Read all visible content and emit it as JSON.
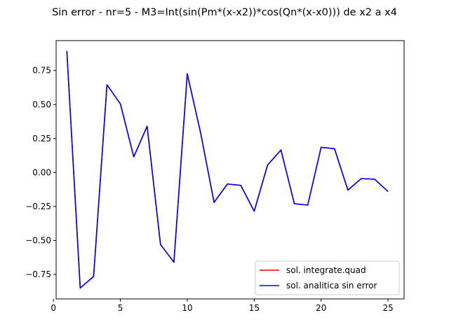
{
  "chart_data": {
    "type": "line",
    "title": "Sin error  - nr=5 - M3=Int(sin(Pm*(x-x2))*cos(Qn*(x-x0))) de x2 a x4",
    "xlabel": "",
    "ylabel": "",
    "xlim": [
      0.2,
      26.2
    ],
    "ylim": [
      -0.93,
      0.97
    ],
    "xticks": [
      0,
      5,
      10,
      15,
      20,
      25
    ],
    "yticks": [
      -0.75,
      -0.5,
      -0.25,
      0.0,
      0.25,
      0.5,
      0.75
    ],
    "xtick_labels": [
      "0",
      "5",
      "10",
      "15",
      "20",
      "25"
    ],
    "ytick_labels": [
      "−0.75",
      "−0.50",
      "−0.25",
      "0.00",
      "0.25",
      "0.50",
      "0.75"
    ],
    "grid": false,
    "legend_position": "lower-right",
    "x": [
      1,
      2,
      3,
      4,
      5,
      6,
      7,
      8,
      9,
      10,
      11,
      12,
      13,
      14,
      15,
      16,
      17,
      18,
      19,
      20,
      21,
      22,
      23,
      24,
      25
    ],
    "series": [
      {
        "name": "sol. integrate.quad",
        "color": "#ff0000",
        "values": [
          0.895,
          -0.85,
          -0.765,
          0.645,
          0.505,
          0.115,
          0.34,
          -0.53,
          -0.66,
          0.725,
          0.29,
          -0.22,
          -0.085,
          -0.095,
          -0.285,
          0.055,
          0.165,
          -0.23,
          -0.24,
          0.185,
          0.175,
          -0.13,
          -0.045,
          -0.05,
          -0.14
        ]
      },
      {
        "name": "sol. analitica sin error",
        "color": "#0000ff",
        "values": [
          0.895,
          -0.85,
          -0.765,
          0.645,
          0.505,
          0.115,
          0.34,
          -0.53,
          -0.66,
          0.725,
          0.29,
          -0.22,
          -0.085,
          -0.095,
          -0.285,
          0.055,
          0.165,
          -0.23,
          -0.24,
          0.185,
          0.175,
          -0.13,
          -0.045,
          -0.05,
          -0.14
        ]
      }
    ]
  }
}
